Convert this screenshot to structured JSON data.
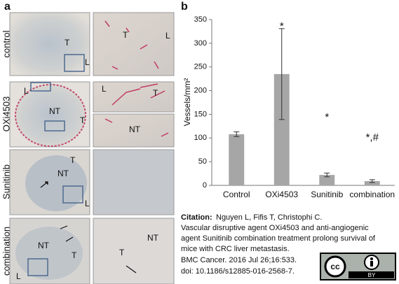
{
  "panel_a": {
    "label": "a",
    "rows": [
      "control",
      "OXi4503",
      "Sunitinib",
      "combination"
    ],
    "labels": [
      "T",
      "L",
      "T",
      "L",
      "L",
      "NT",
      "T",
      "L",
      "T",
      "NT",
      "T",
      "NT",
      "L",
      "NT",
      "T",
      "L",
      "NT",
      "T"
    ]
  },
  "chart_data": {
    "type": "bar",
    "panel_label": "b",
    "categories": [
      "Control",
      "OXi4503",
      "Sunitinib",
      "combination"
    ],
    "values": [
      108,
      235,
      22,
      9
    ],
    "errors": [
      5,
      96,
      4,
      3
    ],
    "significance": [
      null,
      "*",
      "*",
      "*,#"
    ],
    "color": "#a6a6a6",
    "y_label": "Vessels/mm²",
    "ylim": [
      0,
      350
    ],
    "yticks": [
      0,
      50,
      100,
      150,
      200,
      250,
      300,
      350
    ],
    "grid": false
  },
  "citation": {
    "label": "Citation:",
    "lines": [
      "Nguyen L, Fifis T, Christophi C.",
      "Vascular disruptive agent OXi4503 and anti-angiogenic",
      "agent Sunitinib combination treatment prolong survival of",
      "mice with CRC liver metastasis.",
      "BMC Cancer. 2016 Jul 26;16:533.",
      "doi: 10.1186/s12885-016-2568-7."
    ]
  },
  "license": {
    "cc": "cc",
    "by": "BY"
  }
}
